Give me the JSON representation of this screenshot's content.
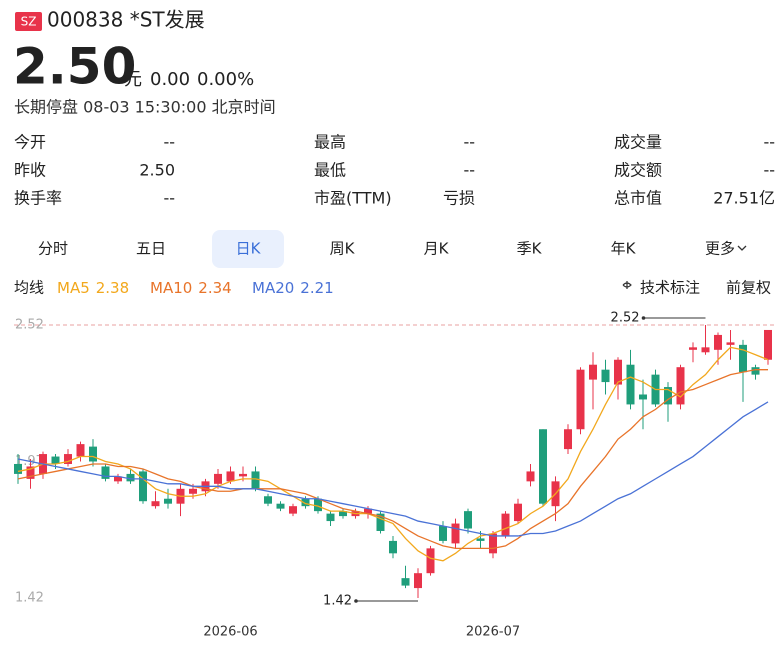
{
  "header": {
    "market": "SZ",
    "code_name": "000838 *ST发展",
    "price": "2.50",
    "unit": "元",
    "change": "0.00",
    "change_pct": "0.00%",
    "status": "长期停盘 08-03 15:30:00 北京时间"
  },
  "stats": [
    {
      "label": "今开",
      "value": "--"
    },
    {
      "label": "最高",
      "value": "--"
    },
    {
      "label": "成交量",
      "value": "--"
    },
    {
      "label": "昨收",
      "value": "2.50"
    },
    {
      "label": "最低",
      "value": "--"
    },
    {
      "label": "成交额",
      "value": "--"
    },
    {
      "label": "换手率",
      "value": "--"
    },
    {
      "label": "市盈(TTM)",
      "value": "亏损"
    },
    {
      "label": "总市值",
      "value": "27.51亿"
    }
  ],
  "tabs": [
    "分时",
    "五日",
    "日K",
    "周K",
    "月K",
    "季K",
    "年K",
    "更多"
  ],
  "active_tab": "日K",
  "indicator_label": "均线",
  "tools": [
    "技术标注",
    "前复权"
  ],
  "chart_data": {
    "type": "candlestick",
    "up_color": "#e8334a",
    "down_color": "#1f9e7b",
    "ylim": [
      1.42,
      2.52
    ],
    "yticks": [
      1.42,
      1.97,
      2.52
    ],
    "categories": [
      null,
      null,
      null,
      null,
      null,
      null,
      null,
      null,
      null,
      null,
      null,
      null,
      null,
      null,
      null,
      null,
      null,
      "2026-06",
      null,
      null,
      null,
      null,
      null,
      null,
      null,
      null,
      null,
      null,
      null,
      null,
      null,
      null,
      null,
      null,
      null,
      null,
      null,
      null,
      "2026-07",
      null,
      null,
      null,
      null,
      null,
      null,
      null,
      null,
      null,
      null,
      null,
      null,
      null,
      null,
      null,
      null,
      null,
      null,
      null,
      null,
      null,
      null
    ],
    "ohlc": [
      [
        1.96,
        2.0,
        1.88,
        1.92
      ],
      [
        1.9,
        1.98,
        1.86,
        1.95
      ],
      [
        1.92,
        2.01,
        1.9,
        2.0
      ],
      [
        1.99,
        2.0,
        1.94,
        1.96
      ],
      [
        1.96,
        2.02,
        1.95,
        2.0
      ],
      [
        1.99,
        2.05,
        1.97,
        2.04
      ],
      [
        2.03,
        2.06,
        1.95,
        1.97
      ],
      [
        1.95,
        1.96,
        1.89,
        1.9
      ],
      [
        1.89,
        1.92,
        1.88,
        1.91
      ],
      [
        1.92,
        1.94,
        1.88,
        1.89
      ],
      [
        1.93,
        1.94,
        1.8,
        1.81
      ],
      [
        1.79,
        1.85,
        1.78,
        1.81
      ],
      [
        1.82,
        1.86,
        1.78,
        1.8
      ],
      [
        1.8,
        1.88,
        1.75,
        1.86
      ],
      [
        1.84,
        1.88,
        1.82,
        1.86
      ],
      [
        1.85,
        1.9,
        1.83,
        1.89
      ],
      [
        1.88,
        1.94,
        1.86,
        1.92
      ],
      [
        1.89,
        1.95,
        1.88,
        1.93
      ],
      [
        1.91,
        1.95,
        1.89,
        1.92
      ],
      [
        1.93,
        1.95,
        1.85,
        1.86
      ],
      [
        1.83,
        1.84,
        1.79,
        1.8
      ],
      [
        1.8,
        1.81,
        1.77,
        1.78
      ],
      [
        1.76,
        1.8,
        1.75,
        1.79
      ],
      [
        1.82,
        1.83,
        1.78,
        1.79
      ],
      [
        1.82,
        1.83,
        1.76,
        1.77
      ],
      [
        1.76,
        1.77,
        1.71,
        1.73
      ],
      [
        1.77,
        1.78,
        1.74,
        1.75
      ],
      [
        1.75,
        1.78,
        1.74,
        1.77
      ],
      [
        1.76,
        1.79,
        1.74,
        1.78
      ],
      [
        1.76,
        1.77,
        1.68,
        1.69
      ],
      [
        1.65,
        1.67,
        1.58,
        1.6
      ],
      [
        1.5,
        1.55,
        1.46,
        1.47
      ],
      [
        1.46,
        1.54,
        1.42,
        1.52
      ],
      [
        1.52,
        1.63,
        1.51,
        1.62
      ],
      [
        1.71,
        1.73,
        1.64,
        1.65
      ],
      [
        1.64,
        1.74,
        1.62,
        1.72
      ],
      [
        1.77,
        1.78,
        1.68,
        1.7
      ],
      [
        1.66,
        1.69,
        1.62,
        1.65
      ],
      [
        1.6,
        1.69,
        1.58,
        1.68
      ],
      [
        1.67,
        1.77,
        1.66,
        1.76
      ],
      [
        1.73,
        1.82,
        1.72,
        1.8
      ],
      [
        1.89,
        1.96,
        1.87,
        1.93
      ],
      [
        2.1,
        2.1,
        1.79,
        1.8
      ],
      [
        1.79,
        1.91,
        1.73,
        1.89
      ],
      [
        2.02,
        2.12,
        2.0,
        2.1
      ],
      [
        2.1,
        2.35,
        2.08,
        2.34
      ],
      [
        2.3,
        2.41,
        2.18,
        2.36
      ],
      [
        2.34,
        2.38,
        2.24,
        2.29
      ],
      [
        2.28,
        2.39,
        2.22,
        2.38
      ],
      [
        2.36,
        2.42,
        2.18,
        2.2
      ],
      [
        2.24,
        2.3,
        2.1,
        2.22
      ],
      [
        2.32,
        2.34,
        2.19,
        2.2
      ],
      [
        2.27,
        2.29,
        2.13,
        2.2
      ],
      [
        2.2,
        2.36,
        2.18,
        2.35
      ],
      [
        2.42,
        2.45,
        2.37,
        2.43
      ],
      [
        2.41,
        2.52,
        2.4,
        2.43
      ],
      [
        2.42,
        2.49,
        2.36,
        2.48
      ],
      [
        2.44,
        2.5,
        2.38,
        2.45
      ],
      [
        2.44,
        2.46,
        2.21,
        2.33
      ],
      [
        2.35,
        2.36,
        2.3,
        2.32
      ],
      [
        2.38,
        2.5,
        2.36,
        2.5
      ]
    ],
    "series": [
      {
        "name": "MA5",
        "color": "#f2a81d",
        "values": [
          1.93,
          1.94,
          1.96,
          1.96,
          1.97,
          1.99,
          1.99,
          1.97,
          1.96,
          1.94,
          1.9,
          1.86,
          1.84,
          1.83,
          1.83,
          1.84,
          1.87,
          1.89,
          1.9,
          1.9,
          1.89,
          1.86,
          1.83,
          1.8,
          1.79,
          1.77,
          1.77,
          1.76,
          1.76,
          1.74,
          1.72,
          1.66,
          1.61,
          1.58,
          1.57,
          1.6,
          1.64,
          1.67,
          1.68,
          1.7,
          1.72,
          1.76,
          1.79,
          1.84,
          1.9,
          2.01,
          2.1,
          2.2,
          2.29,
          2.31,
          2.29,
          2.26,
          2.26,
          2.23,
          2.28,
          2.32,
          2.38,
          2.43,
          2.42,
          2.4,
          2.38
        ]
      },
      {
        "name": "MA10",
        "color": "#e8742a",
        "values": [
          1.9,
          1.91,
          1.92,
          1.93,
          1.94,
          1.95,
          1.96,
          1.96,
          1.95,
          1.95,
          1.94,
          1.92,
          1.9,
          1.89,
          1.87,
          1.86,
          1.85,
          1.85,
          1.86,
          1.86,
          1.86,
          1.86,
          1.85,
          1.84,
          1.82,
          1.8,
          1.78,
          1.77,
          1.76,
          1.75,
          1.73,
          1.7,
          1.67,
          1.65,
          1.63,
          1.62,
          1.62,
          1.62,
          1.62,
          1.63,
          1.66,
          1.7,
          1.73,
          1.76,
          1.8,
          1.87,
          1.93,
          1.99,
          2.06,
          2.1,
          2.15,
          2.18,
          2.22,
          2.25,
          2.26,
          2.28,
          2.3,
          2.32,
          2.33,
          2.34,
          2.34
        ]
      },
      {
        "name": "MA20",
        "color": "#4a72d6",
        "values": [
          1.98,
          1.97,
          1.96,
          1.95,
          1.94,
          1.93,
          1.92,
          1.91,
          1.91,
          1.9,
          1.9,
          1.89,
          1.88,
          1.88,
          1.87,
          1.87,
          1.87,
          1.86,
          1.86,
          1.86,
          1.85,
          1.84,
          1.83,
          1.82,
          1.82,
          1.81,
          1.8,
          1.79,
          1.78,
          1.77,
          1.76,
          1.75,
          1.73,
          1.72,
          1.71,
          1.7,
          1.69,
          1.68,
          1.67,
          1.67,
          1.67,
          1.68,
          1.68,
          1.69,
          1.71,
          1.73,
          1.76,
          1.79,
          1.82,
          1.84,
          1.87,
          1.9,
          1.93,
          1.96,
          1.99,
          2.03,
          2.07,
          2.11,
          2.15,
          2.18,
          2.21
        ]
      }
    ]
  }
}
